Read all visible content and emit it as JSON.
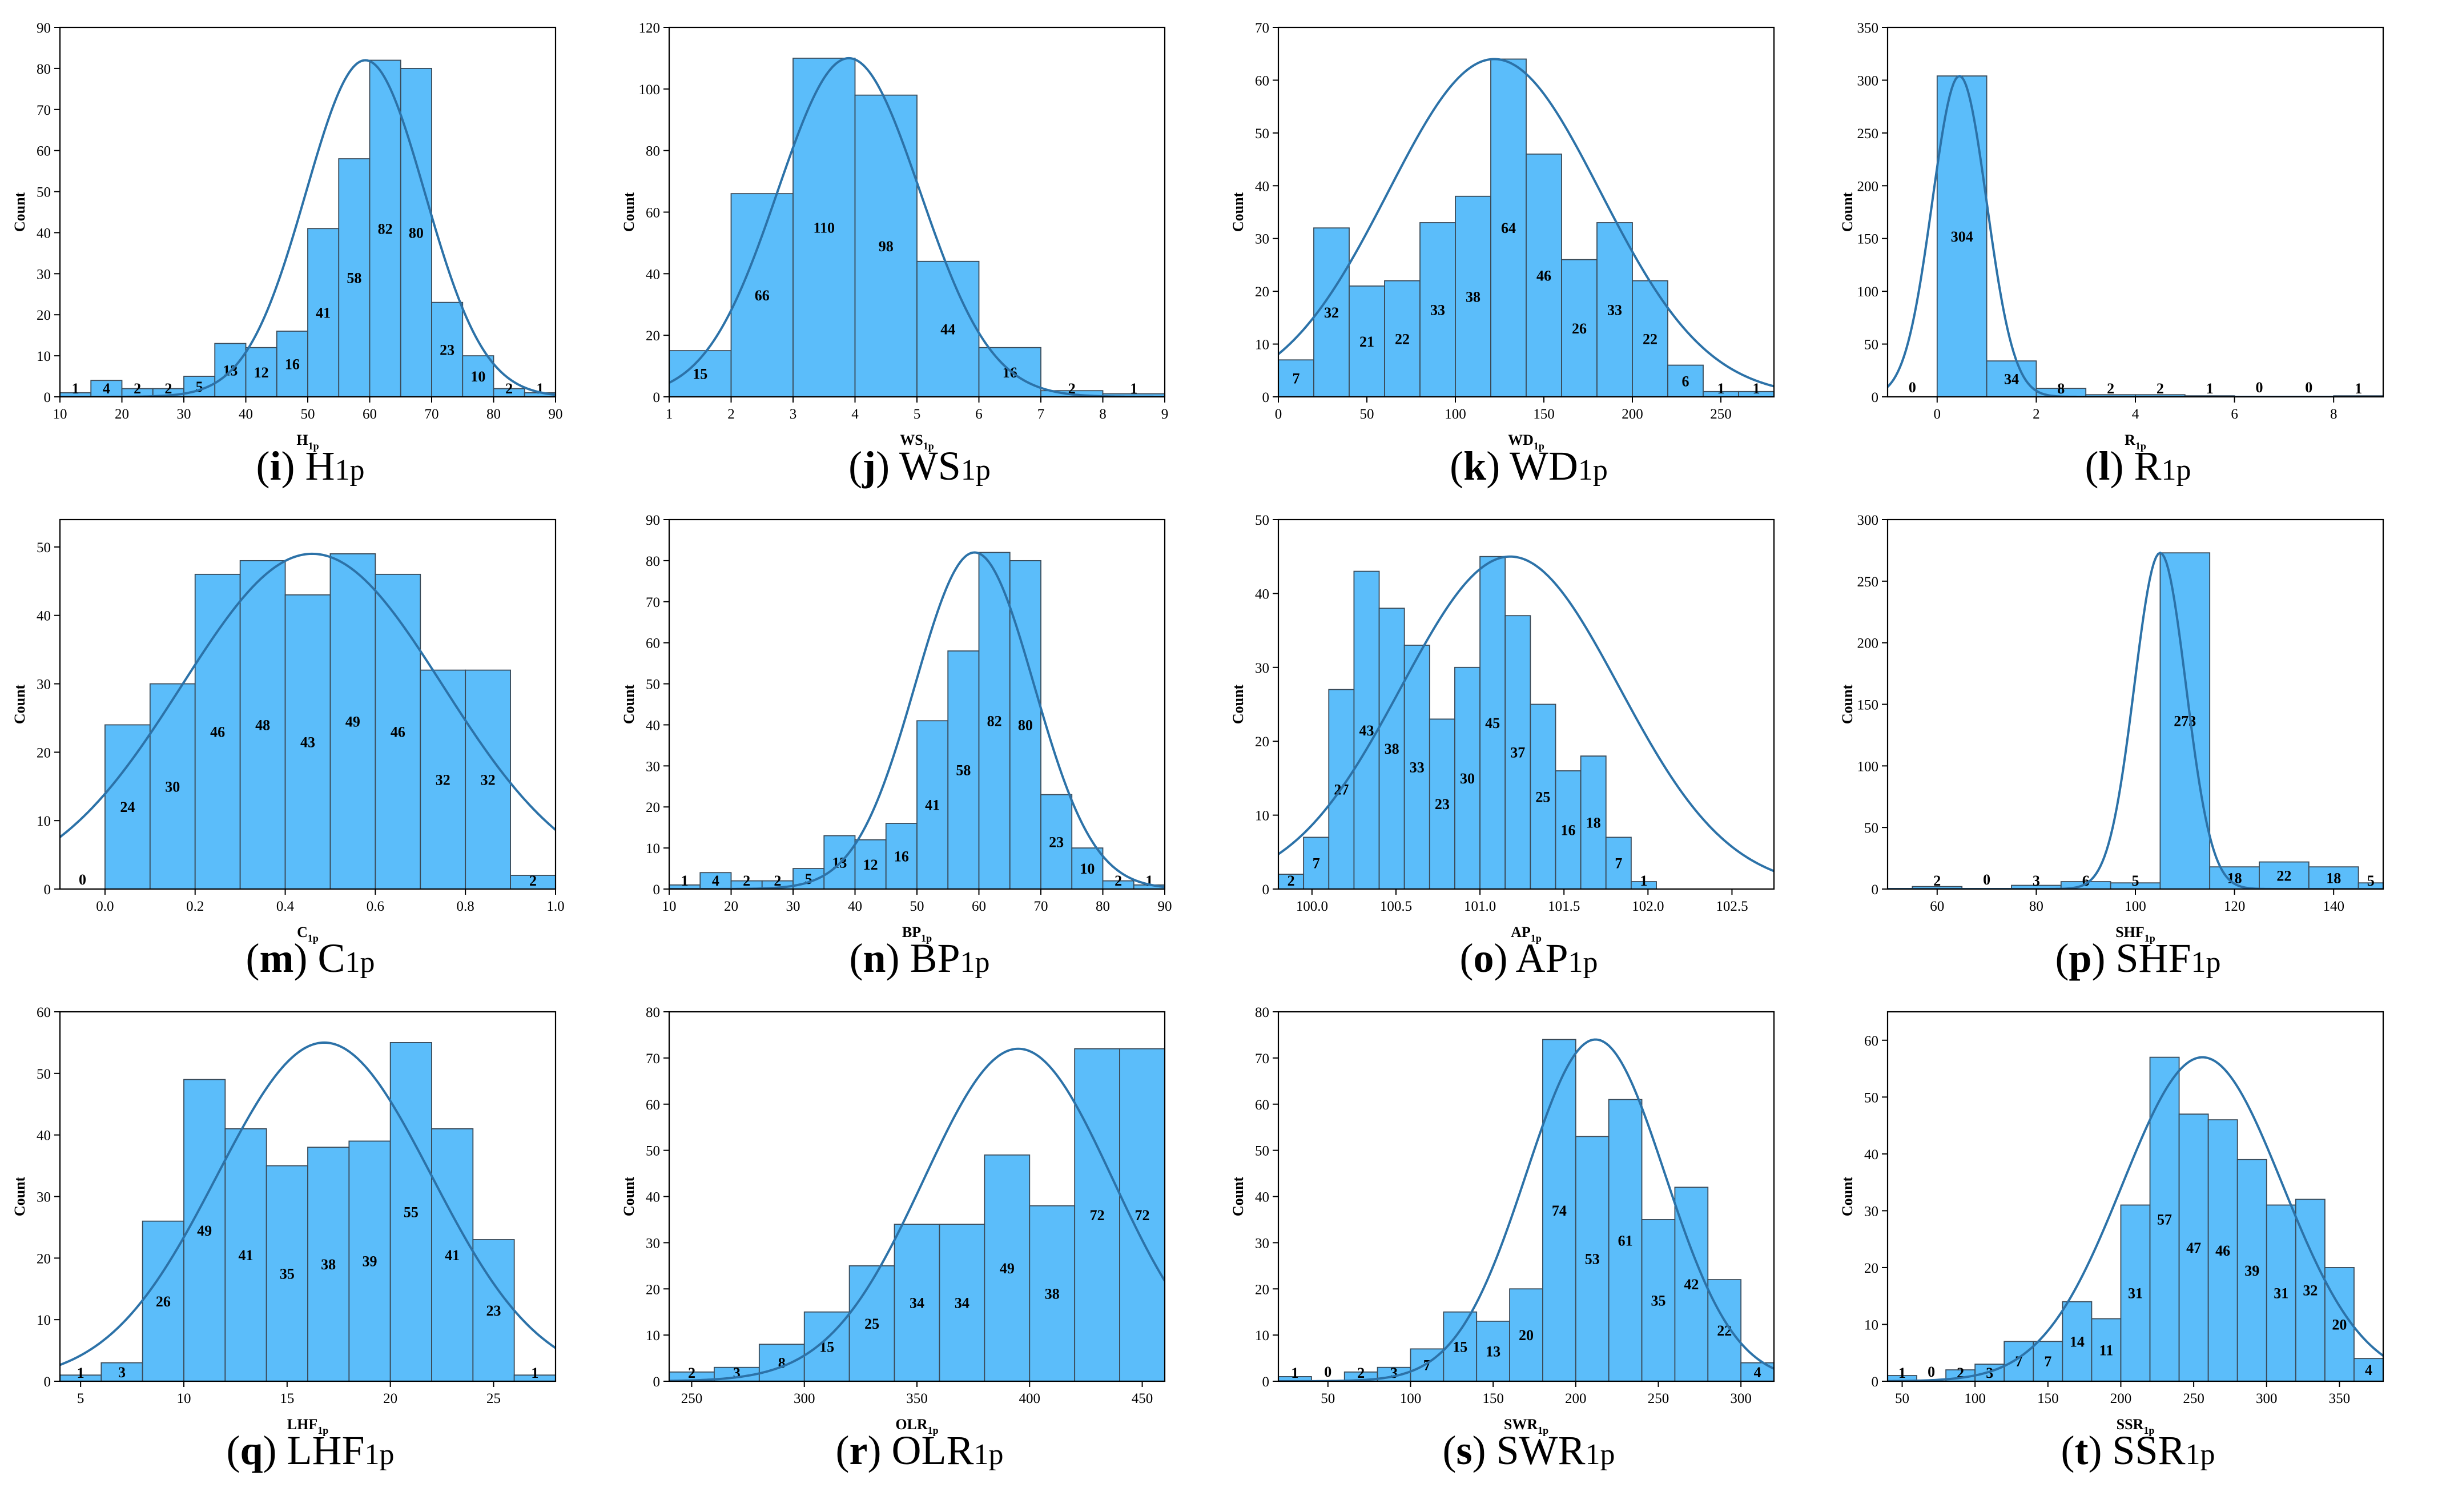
{
  "chart_data": [
    {
      "type": "bar",
      "id": "i",
      "caption_letter": "i",
      "caption_main": "H",
      "caption_sub": "1p",
      "xlabel_main": "H",
      "xlabel_sub": "1p",
      "ylabel": "Count",
      "xlim": [
        10,
        90
      ],
      "ylim": [
        0,
        90
      ],
      "xticks": [
        10,
        20,
        30,
        40,
        50,
        60,
        70,
        80,
        90
      ],
      "yticks": [
        0,
        10,
        20,
        30,
        40,
        50,
        60,
        70,
        80,
        90
      ],
      "bin_start": 10,
      "bin_width": 5,
      "values": [
        1,
        4,
        2,
        2,
        5,
        13,
        12,
        16,
        41,
        58,
        82,
        80,
        23,
        10,
        2,
        1
      ],
      "labels": [
        "1",
        "4",
        "2",
        "2",
        "5",
        "13",
        "12",
        "16",
        "41",
        "58",
        "82",
        "80",
        "23",
        "10",
        "2",
        "1"
      ],
      "curve": {
        "mean": 59.3,
        "sd": 9.6,
        "peak": 82
      }
    },
    {
      "type": "bar",
      "id": "j",
      "caption_letter": "j",
      "caption_main": "WS",
      "caption_sub": "1p",
      "xlabel_main": "WS",
      "xlabel_sub": "1p",
      "ylabel": "Count",
      "xlim": [
        1,
        9
      ],
      "ylim": [
        0,
        120
      ],
      "xticks": [
        1,
        2,
        3,
        4,
        5,
        6,
        7,
        8,
        9
      ],
      "yticks": [
        0,
        20,
        40,
        60,
        80,
        100,
        120
      ],
      "bin_start": 1,
      "bin_width": 1,
      "values": [
        15,
        66,
        110,
        98,
        44,
        16,
        2,
        1
      ],
      "labels": [
        "15",
        "66",
        "110",
        "98",
        "44",
        "16",
        "2",
        "1"
      ],
      "curve": {
        "mean": 3.9,
        "sd": 1.15,
        "peak": 110
      }
    },
    {
      "type": "bar",
      "id": "k",
      "caption_letter": "k",
      "caption_main": "WD",
      "caption_sub": "1p",
      "xlabel_main": "WD",
      "xlabel_sub": "1p",
      "ylabel": "Count",
      "xlim": [
        0,
        280
      ],
      "ylim": [
        0,
        70
      ],
      "xticks": [
        0,
        50,
        100,
        150,
        200,
        250
      ],
      "yticks": [
        0,
        10,
        20,
        30,
        40,
        50,
        60,
        70
      ],
      "bin_start": 0,
      "bin_width": 20,
      "values": [
        7,
        32,
        21,
        22,
        33,
        38,
        64,
        46,
        26,
        33,
        22,
        6,
        1,
        1
      ],
      "labels": [
        "7",
        "32",
        "21",
        "22",
        "33",
        "38",
        "64",
        "46",
        "26",
        "33",
        "22",
        "6",
        "1",
        "1"
      ],
      "curve": {
        "mean": 122,
        "sd": 60,
        "peak": 64
      }
    },
    {
      "type": "bar",
      "id": "l",
      "caption_letter": "l",
      "caption_main": "R",
      "caption_sub": "1p",
      "xlabel_main": "R",
      "xlabel_sub": "1p",
      "ylabel": "Count",
      "xlim": [
        -1,
        9
      ],
      "ylim": [
        0,
        350
      ],
      "xticks": [
        0,
        2,
        4,
        6,
        8
      ],
      "yticks": [
        0,
        50,
        100,
        150,
        200,
        250,
        300,
        350
      ],
      "bin_start": -1,
      "bin_width": 1,
      "values": [
        0,
        304,
        34,
        8,
        2,
        2,
        1,
        0,
        0,
        1
      ],
      "labels": [
        "0",
        "304",
        "34",
        "8",
        "2",
        "2",
        "1",
        "0",
        "0",
        "1"
      ],
      "curve": {
        "mean": 0.45,
        "sd": 0.55,
        "peak": 304
      }
    },
    {
      "type": "bar",
      "id": "m",
      "caption_letter": "m",
      "caption_main": "C",
      "caption_sub": "1p",
      "xlabel_main": "C",
      "xlabel_sub": "1p",
      "ylabel": "Count",
      "xlim": [
        -0.1,
        1.0
      ],
      "ylim": [
        0,
        54
      ],
      "xticks": [
        0.0,
        0.2,
        0.4,
        0.6,
        0.8,
        1.0
      ],
      "yticks": [
        0,
        10,
        20,
        30,
        40,
        50
      ],
      "bin_start": -0.1,
      "bin_width": 0.1,
      "values": [
        0,
        24,
        30,
        46,
        48,
        43,
        49,
        46,
        32,
        32,
        2
      ],
      "labels": [
        "0",
        "24",
        "30",
        "46",
        "48",
        "43",
        "49",
        "46",
        "32",
        "32",
        "2"
      ],
      "curve": {
        "mean": 0.46,
        "sd": 0.29,
        "peak": 49
      }
    },
    {
      "type": "bar",
      "id": "n",
      "caption_letter": "n",
      "caption_main": "BP",
      "caption_sub": "1p",
      "xlabel_main": "BP",
      "xlabel_sub": "1p",
      "ylabel": "Count",
      "xlim": [
        10,
        90
      ],
      "ylim": [
        0,
        90
      ],
      "xticks": [
        10,
        20,
        30,
        40,
        50,
        60,
        70,
        80,
        90
      ],
      "yticks": [
        0,
        10,
        20,
        30,
        40,
        50,
        60,
        70,
        80,
        90
      ],
      "bin_start": 10,
      "bin_width": 5,
      "values": [
        1,
        4,
        2,
        2,
        5,
        13,
        12,
        16,
        41,
        58,
        82,
        80,
        23,
        10,
        2,
        1
      ],
      "labels": [
        "1",
        "4",
        "2",
        "2",
        "5",
        "13",
        "12",
        "16",
        "41",
        "58",
        "82",
        "80",
        "23",
        "10",
        "2",
        "1"
      ],
      "curve": {
        "mean": 59.3,
        "sd": 9.6,
        "peak": 82
      }
    },
    {
      "type": "bar",
      "id": "o",
      "caption_letter": "o",
      "caption_main": "AP",
      "caption_sub": "1p",
      "xlabel_main": "AP",
      "xlabel_sub": "1p",
      "ylabel": "Count",
      "xlim": [
        99.8,
        102.75
      ],
      "ylim": [
        0,
        50
      ],
      "xticks": [
        100.0,
        100.5,
        101.0,
        101.5,
        102.0,
        102.5
      ],
      "yticks": [
        0,
        10,
        20,
        30,
        40,
        50
      ],
      "bin_start": 99.8,
      "bin_width": 0.15,
      "values": [
        2,
        7,
        27,
        43,
        38,
        33,
        23,
        30,
        45,
        37,
        25,
        16,
        18,
        7,
        1
      ],
      "labels": [
        "2",
        "7",
        "27",
        "43",
        "38",
        "33",
        "23",
        "30",
        "45",
        "37",
        "25",
        "16",
        "18",
        "7",
        "1"
      ],
      "curve": {
        "mean": 101.18,
        "sd": 0.65,
        "peak": 45
      }
    },
    {
      "type": "bar",
      "id": "p",
      "caption_letter": "p",
      "caption_main": "SHF",
      "caption_sub": "1p",
      "xlabel_main": "SHF",
      "xlabel_sub": "1p",
      "ylabel": "Count",
      "xlim": [
        50,
        150
      ],
      "ylim": [
        0,
        300
      ],
      "xticks": [
        60,
        80,
        100,
        120,
        140
      ],
      "yticks": [
        0,
        50,
        100,
        150,
        200,
        250,
        300
      ],
      "bin_start": 55,
      "bin_width": 10,
      "values": [
        2,
        0,
        3,
        6,
        5,
        273,
        18,
        22,
        18,
        5
      ],
      "labels": [
        "2",
        "0",
        "3",
        "6",
        "5",
        "273",
        "18",
        "22",
        "18",
        "5"
      ],
      "curve": {
        "mean": 105,
        "sd": 5.2,
        "peak": 273
      }
    },
    {
      "type": "bar",
      "id": "q",
      "caption_letter": "q",
      "caption_main": "LHF",
      "caption_sub": "1p",
      "xlabel_main": "LHF",
      "xlabel_sub": "1p",
      "ylabel": "Count",
      "xlim": [
        4,
        28
      ],
      "ylim": [
        0,
        60
      ],
      "xticks": [
        5,
        10,
        15,
        20,
        25
      ],
      "yticks": [
        0,
        10,
        20,
        30,
        40,
        50,
        60
      ],
      "bin_start": 4,
      "bin_width": 2,
      "values": [
        1,
        3,
        26,
        49,
        41,
        35,
        38,
        39,
        55,
        41,
        23,
        1
      ],
      "labels": [
        "1",
        "3",
        "26",
        "49",
        "41",
        "35",
        "38",
        "39",
        "55",
        "41",
        "23",
        "1"
      ],
      "curve": {
        "mean": 16.8,
        "sd": 5.2,
        "peak": 55
      }
    },
    {
      "type": "bar",
      "id": "r",
      "caption_letter": "r",
      "caption_main": "OLR",
      "caption_sub": "1p",
      "xlabel_main": "OLR",
      "xlabel_sub": "1p",
      "ylabel": "Count",
      "xlim": [
        240,
        460
      ],
      "ylim": [
        0,
        80
      ],
      "xticks": [
        250,
        300,
        350,
        400,
        450
      ],
      "yticks": [
        0,
        10,
        20,
        30,
        40,
        50,
        60,
        70,
        80
      ],
      "bin_start": 240,
      "bin_width": 20,
      "values": [
        2,
        3,
        8,
        15,
        25,
        34,
        34,
        49,
        38,
        72,
        72
      ],
      "labels": [
        "2",
        "3",
        "8",
        "15",
        "25",
        "34",
        "34",
        "49",
        "38",
        "72",
        "72"
      ],
      "curve": {
        "mean": 395,
        "sd": 42,
        "peak": 72
      }
    },
    {
      "type": "bar",
      "id": "s",
      "caption_letter": "s",
      "caption_main": "SWR",
      "caption_sub": "1p",
      "xlabel_main": "SWR",
      "xlabel_sub": "1p",
      "ylabel": "Count",
      "xlim": [
        20,
        320
      ],
      "ylim": [
        0,
        80
      ],
      "xticks": [
        50,
        100,
        150,
        200,
        250,
        300
      ],
      "yticks": [
        0,
        10,
        20,
        30,
        40,
        50,
        60,
        70,
        80
      ],
      "bin_start": 20,
      "bin_width": 20,
      "values": [
        1,
        0,
        2,
        3,
        7,
        15,
        13,
        20,
        74,
        53,
        61,
        35,
        42,
        22,
        4
      ],
      "labels": [
        "1",
        "0",
        "2",
        "3",
        "7",
        "15",
        "13",
        "20",
        "74",
        "53",
        "61",
        "35",
        "42",
        "22",
        "4"
      ],
      "curve": {
        "mean": 212,
        "sd": 42,
        "peak": 74
      }
    },
    {
      "type": "bar",
      "id": "t",
      "caption_letter": "t",
      "caption_main": "SSR",
      "caption_sub": "1p",
      "xlabel_main": "SSR",
      "xlabel_sub": "1p",
      "ylabel": "Count",
      "xlim": [
        40,
        380
      ],
      "ylim": [
        0,
        65
      ],
      "xticks": [
        50,
        100,
        150,
        200,
        250,
        300,
        350
      ],
      "yticks": [
        0,
        10,
        20,
        30,
        40,
        50,
        60
      ],
      "bin_start": 40,
      "bin_width": 20,
      "values": [
        1,
        0,
        2,
        3,
        7,
        7,
        14,
        11,
        31,
        57,
        47,
        46,
        39,
        31,
        32,
        20,
        4
      ],
      "labels": [
        "1",
        "0",
        "2",
        "3",
        "7",
        "7",
        "14",
        "11",
        "31",
        "57",
        "47",
        "46",
        "39",
        "31",
        "32",
        "20",
        "4"
      ],
      "curve": {
        "mean": 256,
        "sd": 55,
        "peak": 57
      }
    }
  ]
}
